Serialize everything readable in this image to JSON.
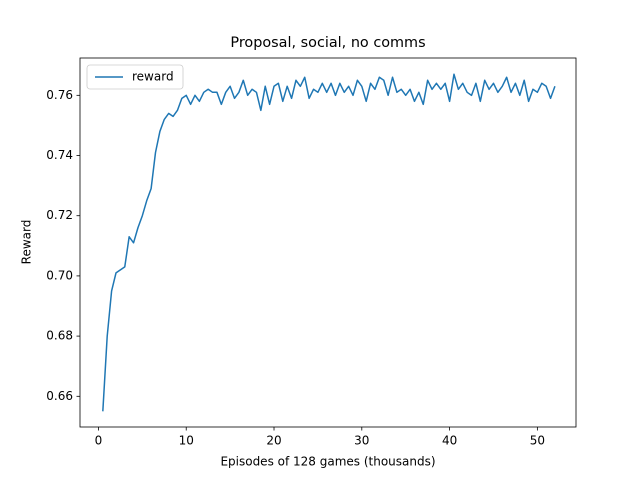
{
  "chart_data": {
    "type": "line",
    "title": "Proposal, social, no comms",
    "x_label": "Episodes of 128 games (thousands)",
    "y_label": "Reward",
    "x": [
      0.5,
      1.0,
      1.5,
      2.0,
      2.5,
      3.0,
      3.5,
      4.0,
      4.5,
      5.0,
      5.5,
      6.0,
      6.5,
      7.0,
      7.5,
      8.0,
      8.5,
      9.0,
      9.5,
      10.0,
      10.5,
      11.0,
      11.5,
      12.0,
      12.5,
      13.0,
      13.5,
      14.0,
      14.5,
      15.0,
      15.5,
      16.0,
      16.5,
      17.0,
      17.5,
      18.0,
      18.5,
      19.0,
      19.5,
      20.0,
      20.5,
      21.0,
      21.5,
      22.0,
      22.5,
      23.0,
      23.5,
      24.0,
      24.5,
      25.0,
      25.5,
      26.0,
      26.5,
      27.0,
      27.5,
      28.0,
      28.5,
      29.0,
      29.5,
      30.0,
      30.5,
      31.0,
      31.5,
      32.0,
      32.5,
      33.0,
      33.5,
      34.0,
      34.5,
      35.0,
      35.5,
      36.0,
      36.5,
      37.0,
      37.5,
      38.0,
      38.5,
      39.0,
      39.5,
      40.0,
      40.5,
      41.0,
      41.5,
      42.0,
      42.5,
      43.0,
      43.5,
      44.0,
      44.5,
      45.0,
      45.5,
      46.0,
      46.5,
      47.0,
      47.5,
      48.0,
      48.5,
      49.0,
      49.5,
      50.0,
      50.5,
      51.0,
      51.5,
      52.0
    ],
    "series": [
      {
        "name": "reward",
        "color": "#1f77b4",
        "values": [
          0.655,
          0.68,
          0.695,
          0.701,
          0.702,
          0.703,
          0.713,
          0.711,
          0.716,
          0.72,
          0.725,
          0.729,
          0.741,
          0.748,
          0.752,
          0.754,
          0.753,
          0.755,
          0.759,
          0.76,
          0.757,
          0.76,
          0.758,
          0.761,
          0.762,
          0.761,
          0.761,
          0.757,
          0.761,
          0.763,
          0.759,
          0.761,
          0.765,
          0.76,
          0.762,
          0.761,
          0.755,
          0.763,
          0.757,
          0.763,
          0.764,
          0.758,
          0.763,
          0.759,
          0.765,
          0.763,
          0.766,
          0.759,
          0.762,
          0.761,
          0.764,
          0.761,
          0.764,
          0.76,
          0.764,
          0.761,
          0.763,
          0.76,
          0.765,
          0.763,
          0.758,
          0.764,
          0.762,
          0.766,
          0.765,
          0.76,
          0.766,
          0.761,
          0.762,
          0.76,
          0.762,
          0.758,
          0.761,
          0.757,
          0.765,
          0.762,
          0.764,
          0.762,
          0.764,
          0.758,
          0.767,
          0.762,
          0.764,
          0.761,
          0.76,
          0.764,
          0.758,
          0.765,
          0.762,
          0.764,
          0.761,
          0.763,
          0.766,
          0.761,
          0.764,
          0.76,
          0.765,
          0.758,
          0.762,
          0.761,
          0.764,
          0.763,
          0.759,
          0.763
        ]
      }
    ],
    "xlim": [
      -2.1,
      54.4
    ],
    "ylim": [
      0.6498,
      0.7724
    ],
    "xticks": [
      0,
      10,
      20,
      30,
      40,
      50
    ],
    "yticks": [
      0.66,
      0.68,
      {
        "value": 0.7,
        "label": "0.70"
      },
      0.72,
      0.74,
      0.76
    ],
    "legend": "upper left"
  }
}
